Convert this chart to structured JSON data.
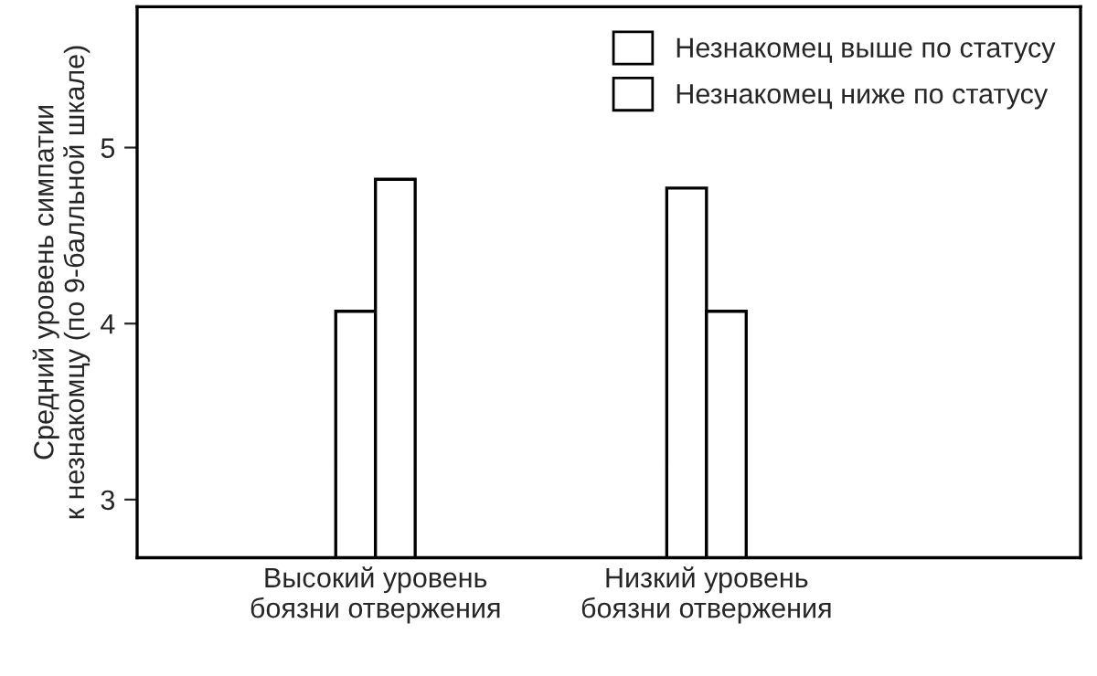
{
  "chart_data": {
    "type": "bar",
    "ylabel": "Средний уровень симпатии\nк незнакомцу (по 9-балльной шкале)",
    "categories": [
      "Высокий уровень\nбоязни отвержения",
      "Низкий уровень\nбоязни отвержения"
    ],
    "series": [
      {
        "name": "Незнакомец выше по статусу",
        "color": "#ffffff",
        "values": [
          4.07,
          4.77
        ]
      },
      {
        "name": "Незнакомец ниже по статусу",
        "color": "#ffffff",
        "values": [
          4.82,
          4.07
        ]
      }
    ],
    "ylim": [
      2.67,
      5.8
    ],
    "yticks": [
      3,
      4,
      5
    ],
    "grid": false,
    "legend": "top right"
  }
}
